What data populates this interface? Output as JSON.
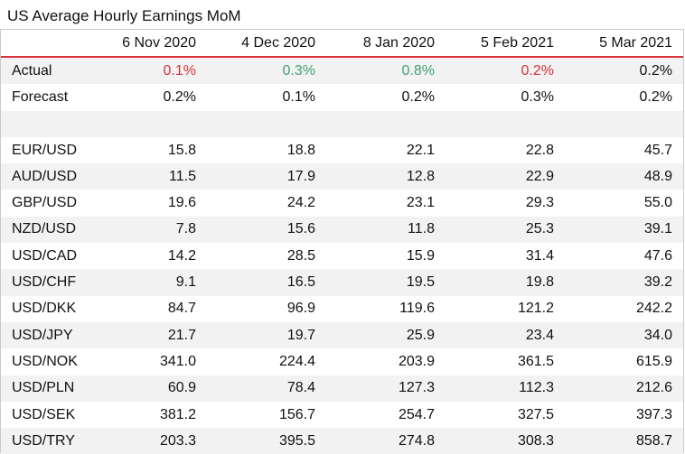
{
  "title": "US Average Hourly Earnings MoM",
  "colors": {
    "red": "#d9313a",
    "green": "#3fa372",
    "shade": "#f2f2f2"
  },
  "columns": [
    "6 Nov 2020",
    "4 Dec 2020",
    "8 Jan 2020",
    "5 Feb 2021",
    "5 Mar 2021"
  ],
  "actual": {
    "label": "Actual",
    "values": [
      "0.1%",
      "0.3%",
      "0.8%",
      "0.2%",
      "0.2%"
    ],
    "colors": [
      "red",
      "green",
      "green",
      "red",
      "black"
    ]
  },
  "forecast": {
    "label": "Forecast",
    "values": [
      "0.2%",
      "0.1%",
      "0.2%",
      "0.3%",
      "0.2%"
    ]
  },
  "pairs": [
    {
      "label": "EUR/USD",
      "values": [
        "15.8",
        "18.8",
        "22.1",
        "22.8",
        "45.7"
      ]
    },
    {
      "label": "AUD/USD",
      "values": [
        "11.5",
        "17.9",
        "12.8",
        "22.9",
        "48.9"
      ]
    },
    {
      "label": "GBP/USD",
      "values": [
        "19.6",
        "24.2",
        "23.1",
        "29.3",
        "55.0"
      ]
    },
    {
      "label": "NZD/USD",
      "values": [
        "7.8",
        "15.6",
        "11.8",
        "25.3",
        "39.1"
      ]
    },
    {
      "label": "USD/CAD",
      "values": [
        "14.2",
        "28.5",
        "15.9",
        "31.4",
        "47.6"
      ]
    },
    {
      "label": "USD/CHF",
      "values": [
        "9.1",
        "16.5",
        "19.5",
        "19.8",
        "39.2"
      ]
    },
    {
      "label": "USD/DKK",
      "values": [
        "84.7",
        "96.9",
        "119.6",
        "121.2",
        "242.2"
      ]
    },
    {
      "label": "USD/JPY",
      "values": [
        "21.7",
        "19.7",
        "25.9",
        "23.4",
        "34.0"
      ]
    },
    {
      "label": "USD/NOK",
      "values": [
        "341.0",
        "224.4",
        "203.9",
        "361.5",
        "615.9"
      ]
    },
    {
      "label": "USD/PLN",
      "values": [
        "60.9",
        "78.4",
        "127.3",
        "112.3",
        "212.6"
      ]
    },
    {
      "label": "USD/SEK",
      "values": [
        "381.2",
        "156.7",
        "254.7",
        "327.5",
        "397.3"
      ]
    },
    {
      "label": "USD/TRY",
      "values": [
        "203.3",
        "395.5",
        "274.8",
        "308.3",
        "858.7"
      ]
    }
  ]
}
